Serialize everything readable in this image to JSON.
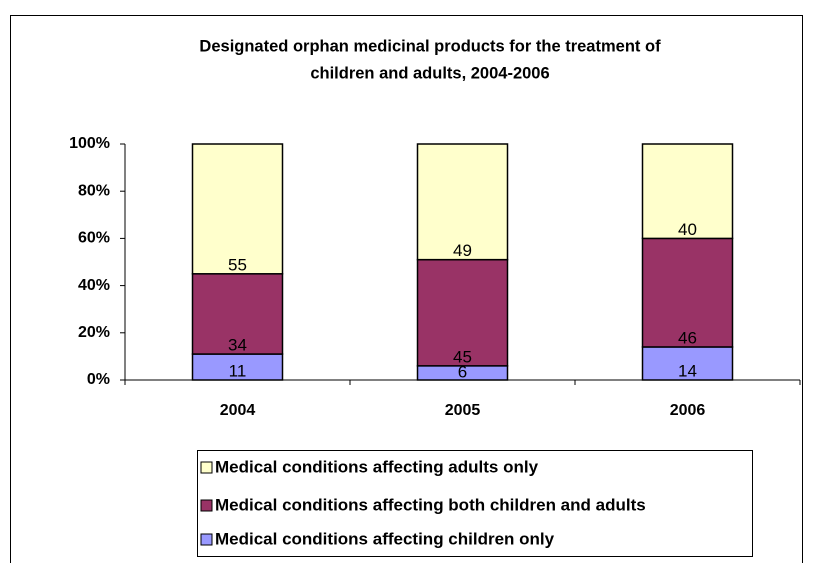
{
  "chart_data": {
    "type": "stacked_bar",
    "title": [
      "Designated orphan medicinal products for the treatment of",
      "children and adults, 2004-2006"
    ],
    "categories": [
      "2004",
      "2005",
      "2006"
    ],
    "series": [
      {
        "name": "Medical conditions affecting children only",
        "color": "#9999ff",
        "values": [
          11,
          6,
          14
        ]
      },
      {
        "name": "Medical conditions affecting both children and adults",
        "color": "#993366",
        "values": [
          34,
          45,
          46
        ]
      },
      {
        "name": "Medical conditions affecting adults only",
        "color": "#ffffcc",
        "values": [
          55,
          49,
          40
        ]
      }
    ],
    "ylim": [
      0,
      100
    ],
    "yticks": [
      {
        "value": 0,
        "label": "0%"
      },
      {
        "value": 20,
        "label": "20%"
      },
      {
        "value": 40,
        "label": "40%"
      },
      {
        "value": 60,
        "label": "60%"
      },
      {
        "value": 80,
        "label": "80%"
      },
      {
        "value": 100,
        "label": "100%"
      }
    ],
    "legend": "bottom"
  }
}
